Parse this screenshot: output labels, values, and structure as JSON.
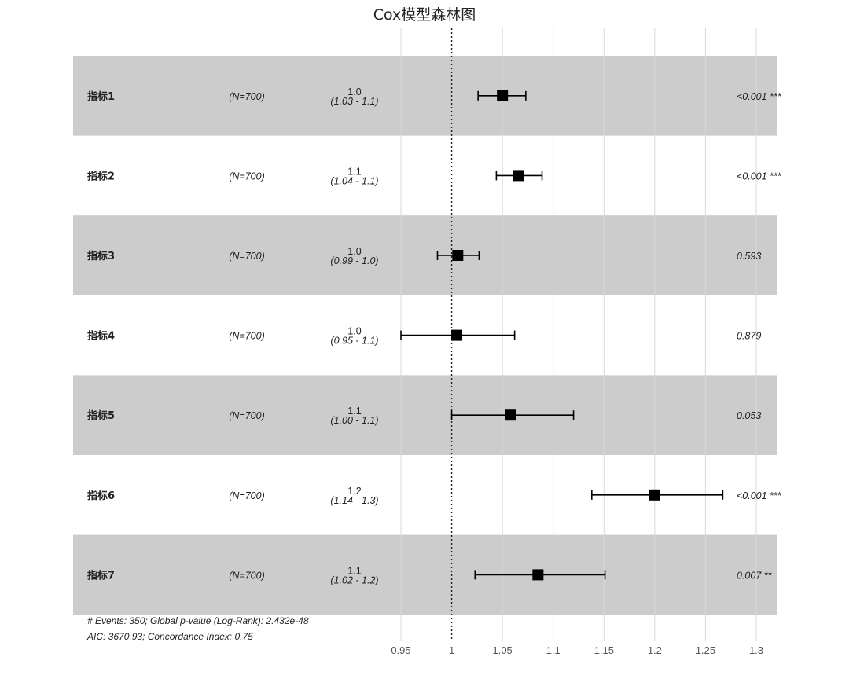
{
  "chart_data": {
    "type": "forest",
    "title": "Cox模型森林图",
    "xaxis": {
      "ticks": [
        0.95,
        1,
        1.05,
        1.1,
        1.15,
        1.2,
        1.25,
        1.3
      ],
      "tick_labels": [
        "0.95",
        "1",
        "1.05",
        "1.1",
        "1.15",
        "1.2",
        "1.25",
        "1.3"
      ],
      "range": [
        0.95,
        1.3
      ],
      "reference_line": 1,
      "grid": true
    },
    "rows": [
      {
        "variable": "指标1",
        "n_label": "(N=700)",
        "hr_label": "1.0",
        "ci_label": "(1.03 - 1.1)",
        "hr": 1.05,
        "ci_low": 1.026,
        "ci_high": 1.073,
        "p_label": "<0.001 ***",
        "shaded": true
      },
      {
        "variable": "指标2",
        "n_label": "(N=700)",
        "hr_label": "1.1",
        "ci_label": "(1.04 - 1.1)",
        "hr": 1.066,
        "ci_low": 1.044,
        "ci_high": 1.089,
        "p_label": "<0.001 ***",
        "shaded": false
      },
      {
        "variable": "指标3",
        "n_label": "(N=700)",
        "hr_label": "1.0",
        "ci_label": "(0.99 - 1.0)",
        "hr": 1.006,
        "ci_low": 0.986,
        "ci_high": 1.027,
        "p_label": "0.593",
        "shaded": true
      },
      {
        "variable": "指标4",
        "n_label": "(N=700)",
        "hr_label": "1.0",
        "ci_label": "(0.95 - 1.1)",
        "hr": 1.005,
        "ci_low": 0.95,
        "ci_high": 1.062,
        "p_label": "0.879",
        "shaded": false
      },
      {
        "variable": "指标5",
        "n_label": "(N=700)",
        "hr_label": "1.1",
        "ci_label": "(1.00 - 1.1)",
        "hr": 1.058,
        "ci_low": 1.0,
        "ci_high": 1.12,
        "p_label": "0.053",
        "shaded": true
      },
      {
        "variable": "指标6",
        "n_label": "(N=700)",
        "hr_label": "1.2",
        "ci_label": "(1.14 - 1.3)",
        "hr": 1.2,
        "ci_low": 1.138,
        "ci_high": 1.267,
        "p_label": "<0.001 ***",
        "shaded": false
      },
      {
        "variable": "指标7",
        "n_label": "(N=700)",
        "hr_label": "1.1",
        "ci_label": "(1.02 - 1.2)",
        "hr": 1.085,
        "ci_low": 1.023,
        "ci_high": 1.151,
        "p_label": "0.007 **",
        "shaded": true
      }
    ],
    "footer": [
      "# Events: 350; Global p-value (Log-Rank): 2.432e-48",
      "AIC: 3670.93; Concordance Index: 0.75"
    ],
    "colors": {
      "shade": "#cccccc",
      "marker": "#000000",
      "grid": "#d9d9d9",
      "text": "#222222"
    }
  }
}
